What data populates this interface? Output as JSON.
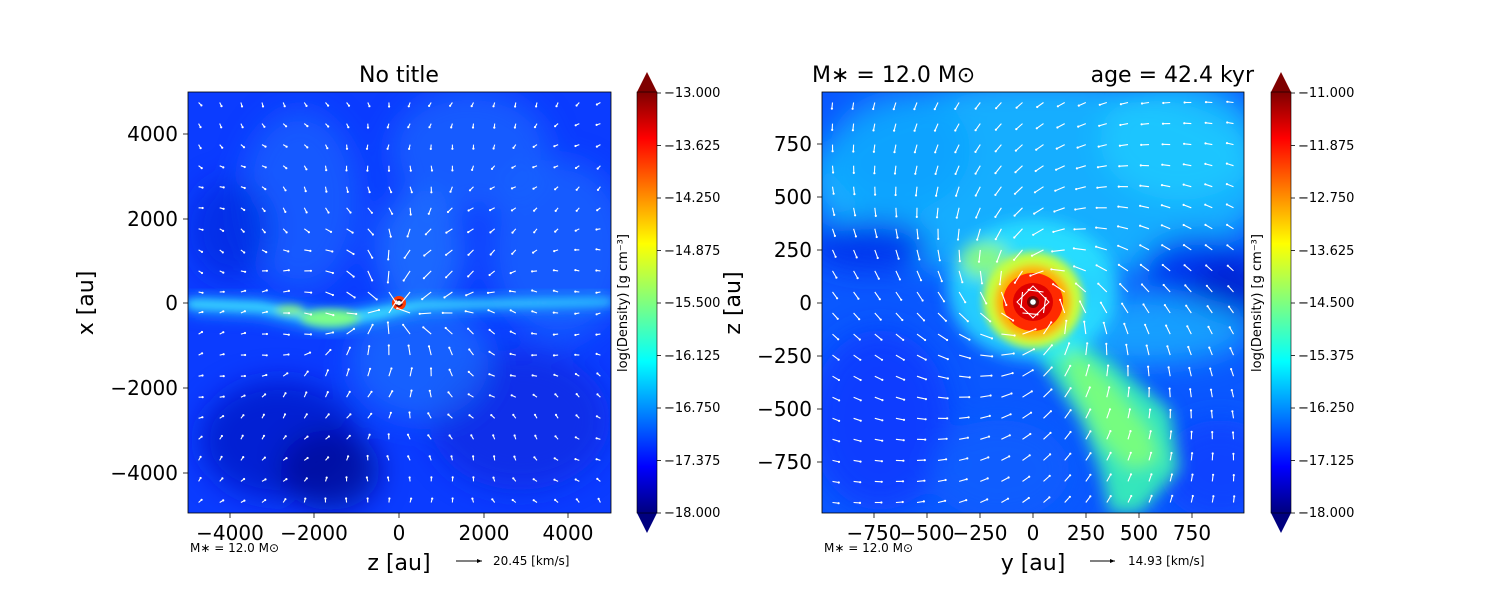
{
  "colors": {
    "colormap": [
      "#00007f",
      "#0000ff",
      "#007fff",
      "#00ffff",
      "#7fff7f",
      "#ffff00",
      "#ff7f00",
      "#ff0000",
      "#7f0000"
    ],
    "vectors": "#ffffff",
    "text": "#000000"
  },
  "panels": [
    {
      "title": "No title",
      "xlabel": "z [au]",
      "ylabel": "x [au]",
      "xticks": [
        "−4000",
        "−2000",
        "0",
        "2000",
        "4000"
      ],
      "yticks": [
        "4000",
        "2000",
        "0",
        "−2000",
        "−4000"
      ],
      "mass_note": "M∗ = 12.0 M⊙",
      "vector_scale": "20.45 [km/s]",
      "colorbar": {
        "label": "log(Density) [g cm⁻³]",
        "ticks": [
          "−13.000",
          "−13.625",
          "−14.250",
          "−14.875",
          "−15.500",
          "−16.125",
          "−16.750",
          "−17.375",
          "−18.000"
        ]
      }
    },
    {
      "title_left": "M∗ = 12.0 M⊙",
      "title_right": "age = 42.4 kyr",
      "xlabel": "y [au]",
      "ylabel": "z [au]",
      "xticks": [
        "−750",
        "−500",
        "−250",
        "0",
        "250",
        "500",
        "750"
      ],
      "yticks": [
        "750",
        "500",
        "250",
        "0",
        "−250",
        "−500",
        "−750"
      ],
      "mass_note": "M∗ = 12.0 M⊙",
      "vector_scale": "14.93 [km/s]",
      "colorbar": {
        "label": "log(Density) [g cm⁻³]",
        "ticks": [
          "−11.000",
          "−11.875",
          "−12.750",
          "−13.625",
          "−14.500",
          "−15.375",
          "−16.250",
          "−17.125",
          "−18.000"
        ]
      }
    }
  ],
  "chart_data": [
    {
      "type": "heatmap",
      "title": "No title",
      "xlabel": "z [au]",
      "ylabel": "x [au]",
      "xlim": [
        -5000,
        5000
      ],
      "ylim": [
        -5000,
        5000
      ],
      "colorbar_label": "log(Density) [g cm⁻³]",
      "colorbar_range": [
        -18.0,
        -13.0
      ],
      "colorbar_ticks": [
        -13.0,
        -13.625,
        -14.25,
        -14.875,
        -15.5,
        -16.125,
        -16.75,
        -17.375,
        -18.0
      ],
      "vector_scale_kms": 20.45,
      "annotations": [
        "M∗ = 12.0 M⊙"
      ]
    },
    {
      "type": "heatmap",
      "title": "M∗ = 12.0 M⊙          age = 42.4 kyr",
      "xlabel": "y [au]",
      "ylabel": "z [au]",
      "xlim": [
        -1000,
        1000
      ],
      "ylim": [
        -1000,
        1000
      ],
      "colorbar_label": "log(Density) [g cm⁻³]",
      "colorbar_range": [
        -18.0,
        -11.0
      ],
      "colorbar_ticks": [
        -11.0,
        -11.875,
        -12.75,
        -13.625,
        -14.5,
        -15.375,
        -16.25,
        -17.125,
        -18.0
      ],
      "vector_scale_kms": 14.93,
      "annotations": [
        "M∗ = 12.0 M⊙"
      ]
    }
  ]
}
